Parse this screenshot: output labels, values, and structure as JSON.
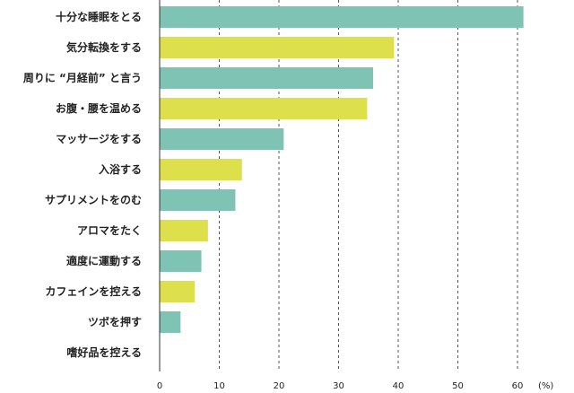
{
  "chart_data": {
    "type": "bar",
    "orientation": "horizontal",
    "categories": [
      "十分な睡眠をとる",
      "気分転換をする",
      "周りに “月経前” と言う",
      "お腹・腰を温める",
      "マッサージをする",
      "入浴する",
      "サプリメントをのむ",
      "アロマをたく",
      "適度に運動する",
      "カフェインを控える",
      "ツボを押す",
      "嗜好品を控える"
    ],
    "values": [
      61,
      39.3,
      35.8,
      34.8,
      20.8,
      13.8,
      12.7,
      8.1,
      7.0,
      5.9,
      3.5,
      0
    ],
    "bar_colors": [
      "#7fc3b5",
      "#dde04a",
      "#7fc3b5",
      "#dde04a",
      "#7fc3b5",
      "#dde04a",
      "#7fc3b5",
      "#dde04a",
      "#7fc3b5",
      "#dde04a",
      "#7fc3b5",
      "#dde04a"
    ],
    "xlim": [
      0,
      60
    ],
    "xticks": [
      0,
      10,
      20,
      30,
      40,
      50,
      60
    ],
    "xunit": "(%)",
    "grid": "vertical dashed",
    "axis_color": "#333333",
    "grid_color": "#555555"
  }
}
